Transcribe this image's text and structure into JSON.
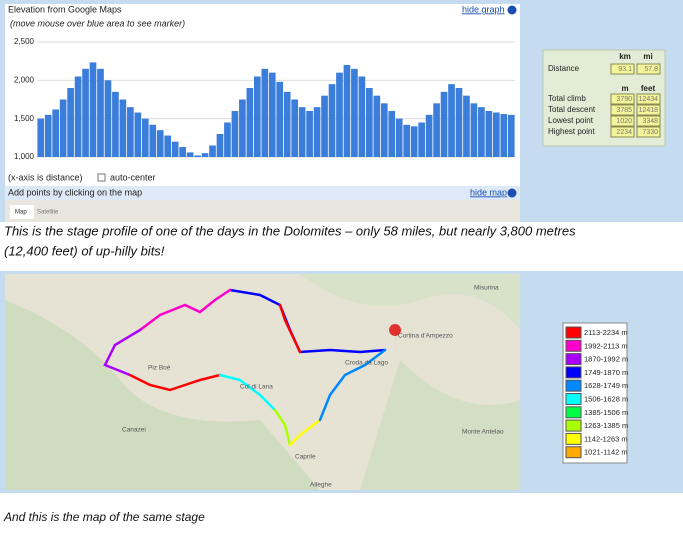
{
  "elevation_widget": {
    "title": "Elevation from Google Maps",
    "hint": "(move mouse over blue area to see marker)",
    "hide_graph": "hide graph",
    "x_note": "(x-axis is distance)",
    "auto_center": "auto-center",
    "add_points": "Add points by clicking on the map",
    "hide_map": "hide map",
    "map_tabs": [
      "Map",
      "Satellite"
    ]
  },
  "chart_data": {
    "type": "bar",
    "color": "#3b7ddb",
    "values": [
      1500,
      1550,
      1620,
      1750,
      1900,
      2050,
      2150,
      2234,
      2150,
      2000,
      1850,
      1750,
      1650,
      1580,
      1500,
      1420,
      1350,
      1280,
      1200,
      1130,
      1060,
      1020,
      1050,
      1150,
      1300,
      1450,
      1600,
      1750,
      1900,
      2050,
      2150,
      2100,
      1980,
      1850,
      1750,
      1650,
      1600,
      1650,
      1800,
      1950,
      2100,
      2200,
      2150,
      2050,
      1900,
      1800,
      1700,
      1600,
      1500,
      1420,
      1400,
      1450,
      1550,
      1700,
      1850,
      1950,
      1900,
      1800,
      1700,
      1650,
      1600,
      1580,
      1560,
      1550
    ],
    "ylim": [
      1000,
      2500
    ],
    "yticks": [
      {
        "value": 1000,
        "label": "1,000"
      },
      {
        "value": 1500,
        "label": "1,500"
      },
      {
        "value": 2000,
        "label": "2,000"
      },
      {
        "value": 2500,
        "label": "2,500"
      }
    ],
    "grid": true
  },
  "stats": {
    "distance_header": [
      "km",
      "mi"
    ],
    "distance_label": "Distance",
    "distance": [
      93.1,
      57.8
    ],
    "height_header": [
      "m",
      "feet"
    ],
    "rows": [
      {
        "label": "Total climb",
        "values": [
          3790,
          12434
        ]
      },
      {
        "label": "Total descent",
        "values": [
          3785,
          12418
        ]
      },
      {
        "label": "Lowest point",
        "values": [
          1020,
          3348
        ]
      },
      {
        "label": "Highest point",
        "values": [
          2234,
          7330
        ]
      }
    ]
  },
  "caption1": [
    "This is the stage profile of one of the days in the Dolomites – only 58 miles, but nearly 3,800 metres",
    "(12,400 feet) of up-hilly bits!"
  ],
  "map_labels": [
    "Cortina d'Ampezzo",
    "Piz Boè",
    "Col di Lana",
    "Croda da Lago",
    "Canazei",
    "Caprile",
    "Monte Antelao",
    "Misurina",
    "Alleghe"
  ],
  "legend": [
    {
      "label": "2113-2234 m",
      "color": "#ff0000"
    },
    {
      "label": "1992-2113 m",
      "color": "#ff00cc"
    },
    {
      "label": "1870-1992 m",
      "color": "#aa00ff"
    },
    {
      "label": "1749-1870 m",
      "color": "#0000ff"
    },
    {
      "label": "1628-1749 m",
      "color": "#0088ff"
    },
    {
      "label": "1506-1628 m",
      "color": "#00ffff"
    },
    {
      "label": "1385-1506 m",
      "color": "#00ff44"
    },
    {
      "label": "1263-1385 m",
      "color": "#aaff00"
    },
    {
      "label": "1142-1263 m",
      "color": "#ffff00"
    },
    {
      "label": "1021-1142 m",
      "color": "#ffaa00"
    }
  ],
  "caption2": "And this is the map of the same stage"
}
